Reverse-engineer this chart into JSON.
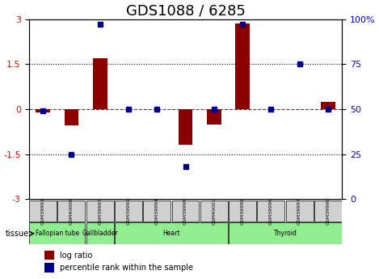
{
  "title": "GDS1088 / 6285",
  "samples": [
    "GSM39991",
    "GSM40000",
    "GSM39993",
    "GSM39992",
    "GSM39994",
    "GSM39999",
    "GSM40001",
    "GSM39995",
    "GSM39996",
    "GSM39997",
    "GSM39998"
  ],
  "log_ratio": [
    -0.12,
    -0.55,
    1.7,
    0.0,
    0.0,
    -1.2,
    -0.5,
    2.85,
    0.0,
    0.0,
    0.25
  ],
  "percentile_rank": [
    49,
    25,
    97,
    50,
    50,
    18,
    50,
    97,
    50,
    75,
    50
  ],
  "tissues": [
    {
      "label": "Fallopian tube",
      "start": 0,
      "end": 2,
      "color": "#90EE90"
    },
    {
      "label": "Gallbladder",
      "start": 2,
      "end": 3,
      "color": "#90EE90"
    },
    {
      "label": "Heart",
      "start": 3,
      "end": 7,
      "color": "#90EE90"
    },
    {
      "label": "Thyroid",
      "start": 7,
      "end": 11,
      "color": "#90EE90"
    }
  ],
  "ylim_left": [
    -3,
    3
  ],
  "ylim_right": [
    0,
    100
  ],
  "yticks_left": [
    -3,
    -1.5,
    0,
    1.5,
    3
  ],
  "yticks_right": [
    0,
    25,
    50,
    75,
    100
  ],
  "bar_color": "#8B0000",
  "dot_color": "#00008B",
  "dashed_line_color": "#CC0000",
  "grid_color": "black",
  "background_color": "white",
  "title_fontsize": 13
}
